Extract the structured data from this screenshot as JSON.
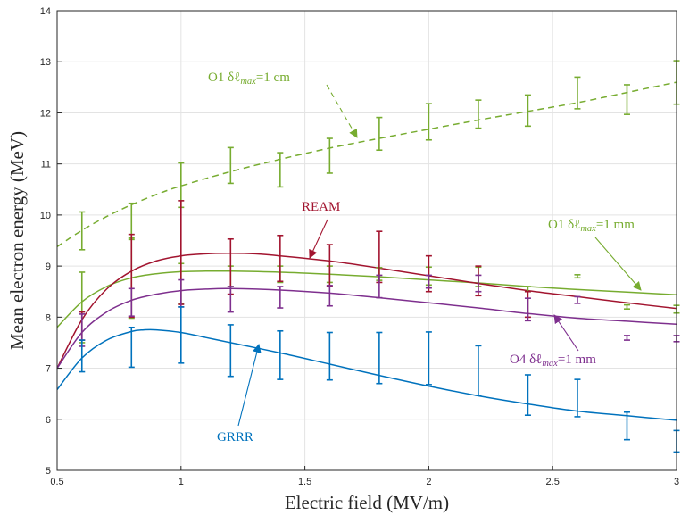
{
  "chart_data": {
    "type": "line",
    "xlabel": "Electric field (MV/m)",
    "ylabel": "Mean electron energy (MeV)",
    "xlim": [
      0.5,
      3
    ],
    "ylim": [
      5,
      14
    ],
    "xticks": [
      "0.5",
      "1",
      "1.5",
      "2",
      "2.5",
      "3"
    ],
    "yticks": [
      "5",
      "6",
      "7",
      "8",
      "9",
      "10",
      "11",
      "12",
      "13",
      "14"
    ],
    "grid": true,
    "colors": {
      "O1_1cm": "#77ac30",
      "O1_1mm": "#77ac30",
      "REAM": "#a2142f",
      "O4_1mm": "#7e2f8e",
      "GRRR": "#0072bd"
    },
    "curves": [
      {
        "key": "O1_1cm",
        "dashed": true,
        "x": [
          0.5,
          0.6,
          0.7,
          0.8,
          0.9,
          1.0,
          1.2,
          1.4,
          1.6,
          1.8,
          2.0,
          2.2,
          2.4,
          2.6,
          2.8,
          3.0
        ],
        "y": [
          9.38,
          9.7,
          9.97,
          10.2,
          10.4,
          10.57,
          10.85,
          11.09,
          11.31,
          11.5,
          11.68,
          11.86,
          12.03,
          12.2,
          12.4,
          12.6
        ]
      },
      {
        "key": "O1_1mm",
        "dashed": false,
        "x": [
          0.5,
          0.6,
          0.7,
          0.8,
          0.9,
          1.0,
          1.1,
          1.2,
          1.4,
          1.6,
          1.8,
          2.0,
          2.2,
          2.4,
          2.6,
          2.8,
          3.0
        ],
        "y": [
          7.8,
          8.3,
          8.6,
          8.77,
          8.85,
          8.89,
          8.9,
          8.9,
          8.88,
          8.84,
          8.79,
          8.73,
          8.67,
          8.6,
          8.54,
          8.49,
          8.44
        ]
      },
      {
        "key": "REAM",
        "dashed": false,
        "x": [
          0.5,
          0.6,
          0.7,
          0.8,
          0.9,
          1.0,
          1.1,
          1.2,
          1.3,
          1.4,
          1.6,
          1.8,
          2.0,
          2.2,
          2.4,
          2.6,
          2.8,
          3.0
        ],
        "y": [
          7.0,
          7.95,
          8.55,
          8.9,
          9.1,
          9.2,
          9.24,
          9.25,
          9.24,
          9.2,
          9.1,
          8.96,
          8.81,
          8.66,
          8.52,
          8.4,
          8.28,
          8.17
        ]
      },
      {
        "key": "O4_1mm",
        "dashed": false,
        "x": [
          0.5,
          0.6,
          0.7,
          0.8,
          0.9,
          1.0,
          1.1,
          1.2,
          1.4,
          1.6,
          1.8,
          2.0,
          2.2,
          2.4,
          2.6,
          2.8,
          3.0
        ],
        "y": [
          7.0,
          7.7,
          8.1,
          8.33,
          8.45,
          8.52,
          8.55,
          8.56,
          8.53,
          8.47,
          8.38,
          8.28,
          8.18,
          8.07,
          7.98,
          7.92,
          7.86
        ]
      },
      {
        "key": "GRRR",
        "dashed": false,
        "x": [
          0.5,
          0.6,
          0.7,
          0.8,
          0.85,
          0.9,
          1.0,
          1.1,
          1.2,
          1.4,
          1.6,
          1.8,
          2.0,
          2.2,
          2.4,
          2.6,
          2.8,
          3.0
        ],
        "y": [
          6.58,
          7.2,
          7.55,
          7.72,
          7.75,
          7.75,
          7.7,
          7.6,
          7.5,
          7.3,
          7.08,
          6.86,
          6.65,
          6.46,
          6.3,
          6.16,
          6.07,
          5.98
        ]
      }
    ],
    "errorbars": [
      {
        "key": "O1_1cm",
        "x": [
          0.6,
          0.8,
          1.0,
          1.2,
          1.4,
          1.6,
          1.8,
          2.0,
          2.2,
          2.4,
          2.6,
          2.8,
          3.0
        ],
        "low": [
          9.32,
          9.52,
          10.15,
          10.62,
          10.55,
          10.82,
          11.27,
          11.47,
          11.7,
          11.74,
          12.08,
          11.97,
          12.17
        ],
        "high": [
          10.06,
          10.23,
          11.02,
          11.32,
          11.22,
          11.5,
          11.91,
          12.18,
          12.25,
          12.35,
          12.7,
          12.55,
          13.02
        ]
      },
      {
        "key": "O1_1mm",
        "x": [
          0.6,
          0.8,
          1.0,
          1.2,
          1.4,
          1.6,
          1.8,
          2.0,
          2.2,
          2.4,
          2.6,
          2.8,
          3.0
        ],
        "low": [
          7.5,
          7.98,
          8.27,
          8.6,
          8.68,
          8.68,
          8.72,
          8.63,
          8.6,
          8.5,
          8.77,
          8.16,
          8.08
        ],
        "high": [
          8.88,
          9.55,
          9.05,
          9.0,
          9.0,
          9.0,
          8.97,
          8.98,
          8.98,
          8.6,
          8.83,
          8.24,
          8.23
        ]
      },
      {
        "key": "REAM",
        "x": [
          0.6,
          0.8,
          1.0,
          1.2,
          1.4,
          1.6,
          1.8,
          2.0,
          2.2,
          2.4
        ],
        "low": [
          7.55,
          8.0,
          8.25,
          8.45,
          8.7,
          8.6,
          8.68,
          8.5,
          8.42,
          8.0
        ],
        "high": [
          8.1,
          9.62,
          10.28,
          9.53,
          9.6,
          9.42,
          9.68,
          9.2,
          9.0,
          8.5
        ]
      },
      {
        "key": "O4_1mm",
        "x": [
          0.6,
          0.8,
          1.0,
          1.2,
          1.4,
          1.6,
          1.8,
          2.0,
          2.2,
          2.4,
          2.6,
          2.8,
          3.0
        ],
        "low": [
          7.43,
          8.02,
          8.2,
          8.1,
          8.18,
          8.22,
          8.38,
          8.57,
          8.5,
          7.93,
          8.27,
          7.55,
          7.52
        ],
        "high": [
          8.06,
          8.56,
          8.73,
          8.6,
          8.6,
          8.62,
          8.82,
          8.82,
          8.82,
          8.37,
          8.4,
          7.64,
          7.64
        ]
      },
      {
        "key": "GRRR",
        "x": [
          0.6,
          0.8,
          1.0,
          1.2,
          1.4,
          1.6,
          1.8,
          2.0,
          2.2,
          2.4,
          2.6,
          2.8,
          3.0
        ],
        "low": [
          6.93,
          7.02,
          7.1,
          6.84,
          6.78,
          6.77,
          6.7,
          6.68,
          6.47,
          6.08,
          6.05,
          5.6,
          5.36
        ],
        "high": [
          7.55,
          7.8,
          8.2,
          7.85,
          7.73,
          7.7,
          7.7,
          7.71,
          7.44,
          6.87,
          6.78,
          6.14,
          5.78
        ]
      }
    ],
    "annotations": [
      {
        "key": "O1_1cm",
        "label": "O1 δℓmax=1 cm",
        "prefix": "O1 δℓ",
        "sub": "max",
        "suffix": "=1 cm"
      },
      {
        "key": "REAM",
        "label": "REAM",
        "prefix": "REAM",
        "sub": "",
        "suffix": ""
      },
      {
        "key": "O1_1mm",
        "label": "O1 δℓmax=1 mm",
        "prefix": "O1 δℓ",
        "sub": "max",
        "suffix": "=1 mm"
      },
      {
        "key": "O4_1mm",
        "label": "O4 δℓmax=1 mm",
        "prefix": "O4 δℓ",
        "sub": "max",
        "suffix": "=1 mm"
      },
      {
        "key": "GRRR",
        "label": "GRRR",
        "prefix": "GRRR",
        "sub": "",
        "suffix": ""
      }
    ]
  }
}
